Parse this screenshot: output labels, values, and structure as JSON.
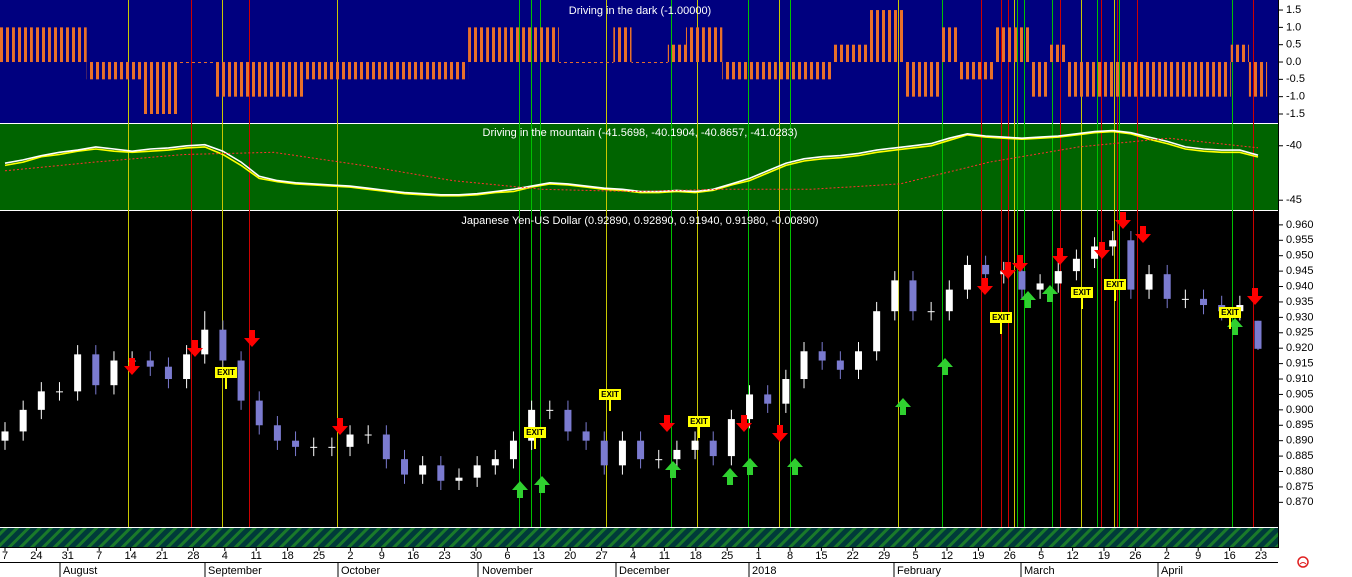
{
  "chart_data": [
    {
      "type": "bar",
      "title": "Driving in the dark (-1.00000)",
      "color": "#e8702a",
      "values": [
        1,
        1,
        1,
        1,
        1,
        -0.5,
        -0.5,
        -0.5,
        -1.5,
        -1.5,
        0,
        0,
        -1,
        -1,
        -1,
        -1,
        -1,
        -0.5,
        -0.5,
        -0.5,
        -0.5,
        -0.5,
        -0.5,
        -0.5,
        -0.5,
        -0.5,
        1,
        1,
        1,
        1,
        1,
        0,
        0,
        0,
        1,
        0,
        0,
        0.5,
        1,
        1,
        -0.5,
        -0.5,
        -0.5,
        -0.5,
        -0.5,
        -0.5,
        0.5,
        0.5,
        1.5,
        1.5,
        -1,
        -1,
        1,
        -0.5,
        -0.5,
        1,
        1,
        -1,
        0.5,
        -1,
        -1,
        -1,
        -1,
        -1,
        -1,
        -1,
        -1,
        -1,
        0.5,
        -1
      ],
      "ylim": [
        -1.76,
        1.79
      ],
      "yticks": [
        1.5,
        {
          "value": 1,
          "label": "1.0"
        },
        0.5,
        {
          "value": 0,
          "label": "0.0"
        },
        -0.5,
        {
          "value": -1,
          "label": "-1.0"
        },
        -1.5
      ]
    },
    {
      "type": "line",
      "title": "Driving in the mountain (-41.5698, -40.1904, -40.8657, -41.0283)",
      "series": [
        {
          "color": "#ffff00",
          "values": [
            -41.8,
            -41.5,
            -41,
            -40.8,
            -40.5,
            -40.3,
            -40.5,
            -40.6,
            -40.5,
            -40.4,
            -40.2,
            -40.1,
            -40.8,
            -41.8,
            -43,
            -43.3,
            -43.5,
            -43.6,
            -43.7,
            -43.8,
            -44,
            -44.2,
            -44.4,
            -44.5,
            -44.6,
            -44.6,
            -44.5,
            -44.3,
            -44.2,
            -43.8,
            -43.5,
            -43.6,
            -43.8,
            -44,
            -44.1,
            -44.3,
            -44.3,
            -44.2,
            -44.3,
            -44.1,
            -43.6,
            -43.2,
            -42.5,
            -41.8,
            -41.4,
            -41.2,
            -41.1,
            -40.9,
            -40.6,
            -40.4,
            -40.2,
            -40,
            -39.5,
            -39,
            -39.2,
            -39.3,
            -39.4,
            -39.3,
            -39.2,
            -39,
            -38.8,
            -38.7,
            -38.9,
            -39.4,
            -39.8,
            -40.3,
            -40.5,
            -40.6,
            -40.6,
            -41.0283
          ]
        },
        {
          "color": "#ffffff",
          "values": [
            -41.6,
            -41.3,
            -40.9,
            -40.6,
            -40.4,
            -40.1,
            -40.3,
            -40.5,
            -40.3,
            -40.2,
            -40,
            -39.9,
            -40.5,
            -41.5,
            -42.8,
            -43.2,
            -43.4,
            -43.5,
            -43.6,
            -43.7,
            -43.9,
            -44.1,
            -44.3,
            -44.4,
            -44.5,
            -44.5,
            -44.4,
            -44.2,
            -44,
            -43.7,
            -43.4,
            -43.5,
            -43.7,
            -43.9,
            -44,
            -44.2,
            -44.2,
            -44.1,
            -44.2,
            -44,
            -43.5,
            -43,
            -42.3,
            -41.6,
            -41.2,
            -41,
            -40.9,
            -40.7,
            -40.4,
            -40.2,
            -40,
            -39.8,
            -39.3,
            -38.9,
            -39.1,
            -39.2,
            -39.3,
            -39.2,
            -39.1,
            -38.9,
            -38.7,
            -38.6,
            -38.8,
            -39.2,
            -39.6,
            -40.1,
            -40.3,
            -40.4,
            -40.4,
            -40.8657
          ]
        },
        {
          "color": "#ff3030",
          "dashed": true,
          "values": [
            -42.3,
            -41.5,
            -40.8,
            -40.6,
            -41.8,
            -43.2,
            -44,
            -44.2,
            -44,
            -44,
            -43.5,
            -41.5,
            -40.1,
            -39.3,
            -40.1904
          ]
        }
      ],
      "ylim": [
        -45.9,
        -38
      ],
      "yticks": [
        -40,
        -45
      ]
    },
    {
      "type": "candlestick",
      "title": "Japanese Yen-US Dollar (0.92890, 0.92890, 0.91940, 0.91980, -0.00890)",
      "up_color": "#ffffff",
      "down_color": "#7b7bd0",
      "open": [
        0.89,
        0.893,
        0.9,
        0.906,
        0.906,
        0.918,
        0.908,
        0.916,
        0.916,
        0.914,
        0.91,
        0.918,
        0.926,
        0.916,
        0.903,
        0.895,
        0.89,
        0.888,
        0.888,
        0.888,
        0.892,
        0.892,
        0.884,
        0.879,
        0.882,
        0.877,
        0.878,
        0.882,
        0.884,
        0.89,
        0.9,
        0.9,
        0.893,
        0.89,
        0.882,
        0.89,
        0.884,
        0.884,
        0.887,
        0.89,
        0.885,
        0.897,
        0.905,
        0.902,
        0.91,
        0.919,
        0.916,
        0.913,
        0.919,
        0.932,
        0.942,
        0.932,
        0.932,
        0.939,
        0.947,
        0.944,
        0.945,
        0.939,
        0.941,
        0.945,
        0.949,
        0.953,
        0.955,
        0.939,
        0.944,
        0.936,
        0.936,
        0.934,
        0.932,
        0.9289
      ],
      "high": [
        0.896,
        0.903,
        0.909,
        0.909,
        0.921,
        0.921,
        0.919,
        0.919,
        0.919,
        0.917,
        0.921,
        0.932,
        0.929,
        0.919,
        0.906,
        0.898,
        0.893,
        0.891,
        0.891,
        0.895,
        0.895,
        0.895,
        0.887,
        0.885,
        0.885,
        0.881,
        0.885,
        0.887,
        0.893,
        0.903,
        0.903,
        0.903,
        0.896,
        0.893,
        0.893,
        0.893,
        0.887,
        0.89,
        0.893,
        0.893,
        0.9,
        0.908,
        0.908,
        0.913,
        0.922,
        0.922,
        0.919,
        0.922,
        0.935,
        0.945,
        0.945,
        0.935,
        0.942,
        0.95,
        0.95,
        0.948,
        0.948,
        0.944,
        0.948,
        0.952,
        0.956,
        0.958,
        0.958,
        0.947,
        0.947,
        0.939,
        0.939,
        0.937,
        0.937,
        0.9289
      ],
      "low": [
        0.887,
        0.89,
        0.897,
        0.903,
        0.903,
        0.905,
        0.905,
        0.913,
        0.911,
        0.907,
        0.907,
        0.915,
        0.913,
        0.9,
        0.892,
        0.887,
        0.885,
        0.885,
        0.885,
        0.885,
        0.889,
        0.881,
        0.876,
        0.876,
        0.874,
        0.874,
        0.875,
        0.879,
        0.881,
        0.887,
        0.897,
        0.89,
        0.887,
        0.879,
        0.879,
        0.881,
        0.881,
        0.881,
        0.884,
        0.882,
        0.882,
        0.894,
        0.899,
        0.899,
        0.907,
        0.913,
        0.91,
        0.91,
        0.916,
        0.929,
        0.929,
        0.929,
        0.929,
        0.936,
        0.941,
        0.941,
        0.936,
        0.936,
        0.938,
        0.942,
        0.946,
        0.95,
        0.936,
        0.936,
        0.933,
        0.933,
        0.931,
        0.929,
        0.929,
        0.9194
      ],
      "close": [
        0.893,
        0.9,
        0.906,
        0.906,
        0.918,
        0.908,
        0.916,
        0.916,
        0.914,
        0.91,
        0.918,
        0.926,
        0.916,
        0.903,
        0.895,
        0.89,
        0.888,
        0.888,
        0.888,
        0.892,
        0.892,
        0.884,
        0.879,
        0.882,
        0.877,
        0.878,
        0.882,
        0.884,
        0.89,
        0.9,
        0.9,
        0.893,
        0.89,
        0.882,
        0.89,
        0.884,
        0.884,
        0.887,
        0.89,
        0.885,
        0.897,
        0.905,
        0.902,
        0.91,
        0.919,
        0.916,
        0.913,
        0.919,
        0.932,
        0.942,
        0.932,
        0.932,
        0.939,
        0.947,
        0.944,
        0.945,
        0.939,
        0.941,
        0.945,
        0.949,
        0.953,
        0.955,
        0.939,
        0.944,
        0.936,
        0.936,
        0.934,
        0.932,
        0.934,
        0.9198
      ],
      "ylim": [
        0.862,
        0.9645
      ],
      "yticks": [
        {
          "value": 0.87,
          "label": "0.870"
        },
        0.875,
        {
          "value": 0.88,
          "label": "0.880"
        },
        0.885,
        {
          "value": 0.89,
          "label": "0.890"
        },
        0.895,
        {
          "value": 0.9,
          "label": "0.900"
        },
        0.905,
        {
          "value": 0.91,
          "label": "0.910"
        },
        0.915,
        {
          "value": 0.92,
          "label": "0.920"
        },
        0.925,
        {
          "value": 0.93,
          "label": "0.930"
        },
        0.935,
        {
          "value": 0.94,
          "label": "0.940"
        },
        0.945,
        {
          "value": 0.95,
          "label": "0.950"
        },
        0.955,
        {
          "value": 0.96,
          "label": "0.960"
        }
      ],
      "exit_flags": [
        "EXIT",
        "EXIT",
        "EXIT",
        "EXIT",
        "EXIT",
        "EXIT",
        "EXIT",
        "EXIT"
      ]
    }
  ],
  "x_axis": {
    "day_labels": [
      "7",
      "24",
      "31",
      "7",
      "14",
      "21",
      "28",
      "4",
      "11",
      "18",
      "25",
      "2",
      "9",
      "16",
      "23",
      "30",
      "6",
      "13",
      "20",
      "27",
      "4",
      "11",
      "18",
      "25",
      "1",
      "8",
      "15",
      "22",
      "29",
      "5",
      "12",
      "19",
      "26",
      "5",
      "12",
      "19",
      "26",
      "2",
      "9",
      "16",
      "23"
    ],
    "month_labels": [
      "August",
      "September",
      "October",
      "November",
      "December",
      "2018",
      "February",
      "March",
      "April"
    ]
  }
}
